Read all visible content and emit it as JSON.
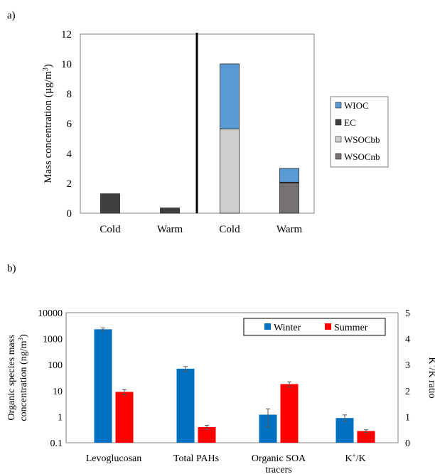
{
  "panel_a_label": "a)",
  "panel_b_label": "b)",
  "chart_data": [
    {
      "type": "bar",
      "stacked": true,
      "ylabel_prefix": "Mass concentration (µg/m",
      "ylabel_sup": "3",
      "ylabel_suffix": ")",
      "ylim": [
        0,
        12
      ],
      "yticks": [
        0,
        2,
        4,
        6,
        8,
        10,
        12
      ],
      "categories": [
        "Cold",
        "Warm",
        "Cold",
        "Warm"
      ],
      "grid": false,
      "legend_position": "right",
      "divider_after_category": 1,
      "series": [
        {
          "name": "WSOCnb",
          "color": "#767171",
          "values": [
            0,
            0,
            0,
            2.03
          ]
        },
        {
          "name": "WSOCbb",
          "color": "#d0cece",
          "values": [
            0,
            0,
            5.65,
            0
          ]
        },
        {
          "name": "EC",
          "color": "#404040",
          "values": [
            1.3,
            0.35,
            0,
            0.05
          ]
        },
        {
          "name": "WIOC",
          "color": "#5b9bd5",
          "values": [
            0,
            0,
            4.35,
            0.92
          ]
        }
      ],
      "legend_order": [
        "WIOC",
        "EC",
        "WSOCbb",
        "WSOCnb"
      ]
    },
    {
      "type": "bar",
      "ylabel_line1": "Organic species mass",
      "ylabel_line2_prefix": "concentration (ng/m",
      "ylabel_line2_sup": "3",
      "ylabel_line2_suffix": ")",
      "y_scale": "log",
      "ylim": [
        0.1,
        10000
      ],
      "yticks": [
        "0.1",
        "1",
        "10",
        "100",
        "1000",
        "10000"
      ],
      "y2label_prefix": "K",
      "y2label_sup": "+",
      "y2label_suffix": "/K ratio",
      "y2lim": [
        0,
        5
      ],
      "y2ticks": [
        0,
        1,
        2,
        3,
        4,
        5
      ],
      "categories": [
        {
          "line1": "Levoglucosan",
          "line2": ""
        },
        {
          "line1": "Total PAHs",
          "line2": ""
        },
        {
          "line1": "Organic SOA",
          "line2": "tracers"
        },
        {
          "line1_prefix": "K",
          "line1_sup": "+",
          "line1_suffix": "/K",
          "line2": ""
        }
      ],
      "legend_position": "top-right",
      "series": [
        {
          "name": "Winter",
          "color": "#0070c0",
          "values": [
            2300,
            70,
            1.2,
            0.95
          ],
          "errors": [
            300,
            15,
            0.8,
            0.12
          ]
        },
        {
          "name": "Summer",
          "color": "#ff0000",
          "values": [
            9,
            0.4,
            18,
            0.45
          ],
          "errors": [
            2,
            0.07,
            4,
            0.05
          ]
        }
      ],
      "secondary_axis_categories": [
        3
      ]
    }
  ]
}
